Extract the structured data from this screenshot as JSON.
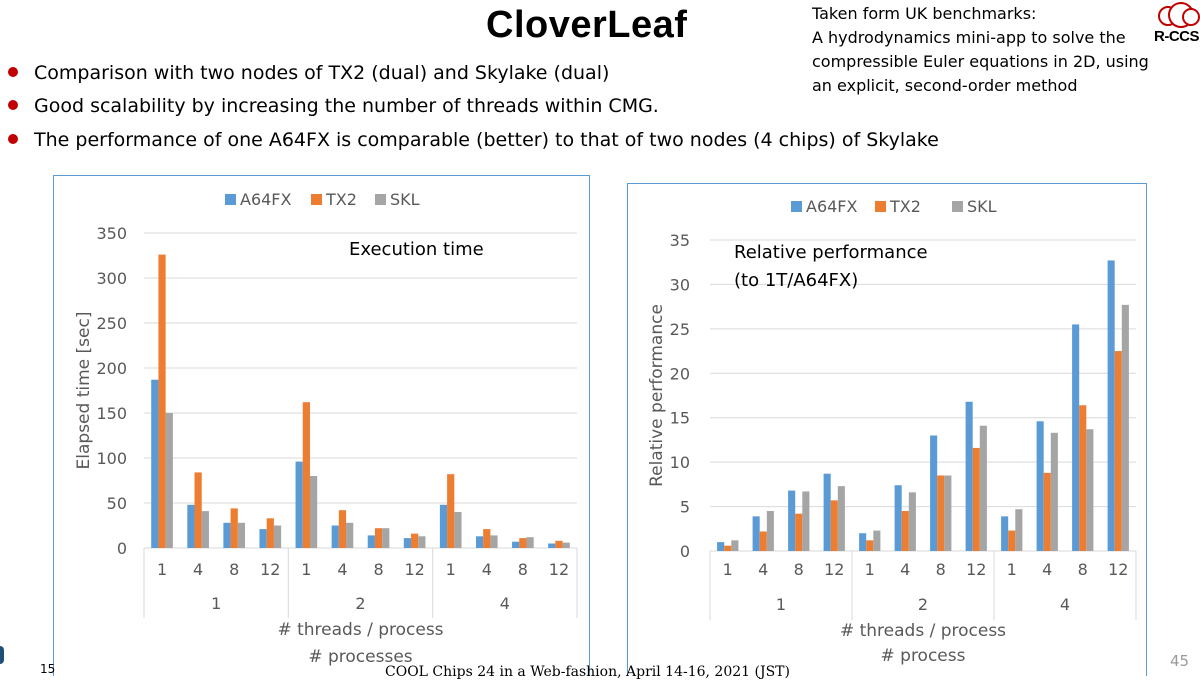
{
  "slide": {
    "title": "CloverLeaf",
    "note_lines": [
      "Taken form UK benchmarks:",
      "A hydrodynamics mini-app to solve the",
      "compressible Euler equations in 2D, using",
      "an explicit, second-order method"
    ],
    "logo_text": "R-CCS",
    "bullets": [
      "Comparison with two nodes of TX2 (dual) and Skylake (dual)",
      "Good scalability by increasing the number of threads within CMG.",
      "The performance of one A64FX is comparable (better) to that of two nodes (4 chips) of Skylake"
    ],
    "footer": "COOL Chips 24 in a Web-fashion, April 14-16, 2021 (JST)",
    "page_number": "45",
    "slide_number_fragment": "15",
    "accent_color": "#c00000"
  },
  "chart_data": [
    {
      "type": "bar",
      "annotation": "Execution time",
      "ylabel": "Elapsed time [sec]",
      "xlabel": "# threads / process",
      "xlabel2": "# processes",
      "ylim": [
        0,
        350
      ],
      "yticks": [
        "0",
        "50",
        "100",
        "150",
        "200",
        "250",
        "300",
        "350"
      ],
      "grid": true,
      "legend_position": "top-center",
      "groups": [
        "1",
        "2",
        "4"
      ],
      "categories": [
        "1",
        "4",
        "8",
        "12",
        "1",
        "4",
        "8",
        "12",
        "1",
        "4",
        "8",
        "12"
      ],
      "series": [
        {
          "name": "A64FX",
          "color": "#5b9bd5",
          "values": [
            187,
            48,
            28,
            21,
            96,
            25,
            14,
            11,
            48,
            13,
            7,
            5
          ]
        },
        {
          "name": "TX2",
          "color": "#ed7d31",
          "values": [
            326,
            84,
            44,
            33,
            162,
            42,
            22,
            16,
            82,
            21,
            11,
            8
          ]
        },
        {
          "name": "SKL",
          "color": "#a5a5a5",
          "values": [
            150,
            41,
            28,
            25,
            80,
            28,
            22,
            13,
            40,
            14,
            12,
            6
          ]
        }
      ]
    },
    {
      "type": "bar",
      "annotation": "Relative performance\n(to 1T/A64FX)",
      "annotation_lines": [
        "Relative performance",
        "(to 1T/A64FX)"
      ],
      "ylabel": "Relative performance",
      "xlabel": "# threads / process",
      "xlabel2": "# process",
      "ylim": [
        0,
        35
      ],
      "yticks": [
        "0",
        "5",
        "10",
        "15",
        "20",
        "25",
        "30",
        "35"
      ],
      "grid": true,
      "legend_position": "top-center",
      "groups": [
        "1",
        "2",
        "4"
      ],
      "categories": [
        "1",
        "4",
        "8",
        "12",
        "1",
        "4",
        "8",
        "12",
        "1",
        "4",
        "8",
        "12"
      ],
      "series": [
        {
          "name": "A64FX",
          "color": "#5b9bd5",
          "values": [
            1.0,
            3.9,
            6.8,
            8.7,
            2.0,
            7.4,
            13.0,
            16.8,
            3.9,
            14.6,
            25.5,
            32.7
          ]
        },
        {
          "name": "TX2",
          "color": "#ed7d31",
          "values": [
            0.6,
            2.2,
            4.2,
            5.7,
            1.2,
            4.5,
            8.5,
            11.6,
            2.3,
            8.8,
            16.4,
            22.5
          ]
        },
        {
          "name": "SKL",
          "color": "#a5a5a5",
          "values": [
            1.2,
            4.5,
            6.7,
            7.3,
            2.3,
            6.6,
            8.5,
            14.1,
            4.7,
            13.3,
            13.7,
            27.7
          ]
        }
      ]
    }
  ]
}
